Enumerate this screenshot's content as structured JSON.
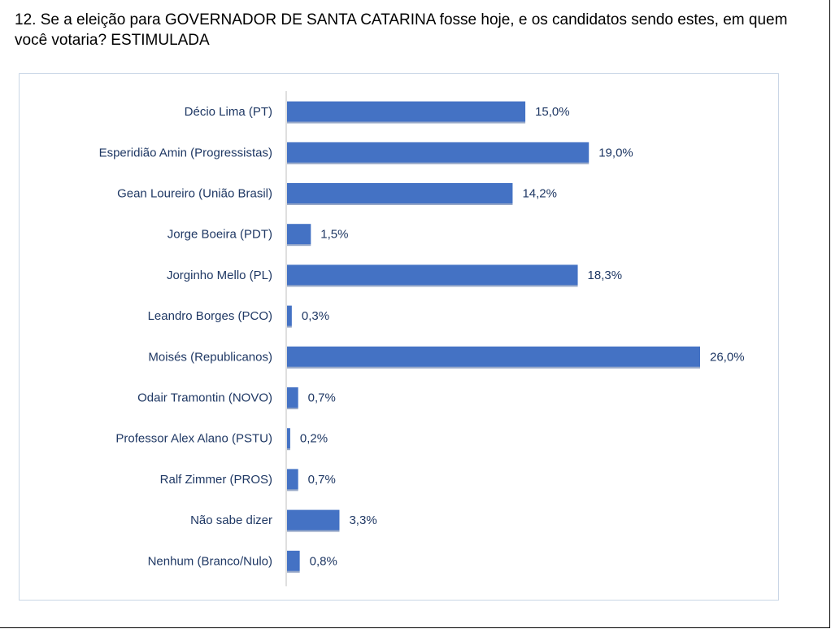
{
  "question": {
    "text": "12. Se a eleição para GOVERNADOR DE SANTA CATARINA fosse hoje, e os candidatos sendo estes, em quem você votaria? ESTIMULADA"
  },
  "colors": {
    "bar": "#4472c4",
    "axis": "#bfbfbf",
    "text": "#1f3864"
  },
  "chart_data": {
    "type": "bar",
    "orientation": "horizontal",
    "categories": [
      "Décio Lima (PT)",
      "Esperidião Amin (Progressistas)",
      "Gean Loureiro (União Brasil)",
      "Jorge Boeira (PDT)",
      "Jorginho Mello (PL)",
      "Leandro Borges (PCO)",
      "Moisés (Republicanos)",
      "Odair Tramontin (NOVO)",
      "Professor Alex Alano (PSTU)",
      "Ralf Zimmer (PROS)",
      "Não sabe dizer",
      "Nenhum (Branco/Nulo)"
    ],
    "values": [
      15.0,
      19.0,
      14.2,
      1.5,
      18.3,
      0.3,
      26.0,
      0.7,
      0.2,
      0.7,
      3.3,
      0.8
    ],
    "data_labels": [
      "15,0%",
      "19,0%",
      "14,2%",
      "1,5%",
      "18,3%",
      "0,3%",
      "26,0%",
      "0,7%",
      "0,2%",
      "0,7%",
      "3,3%",
      "0,8%"
    ],
    "title": "",
    "xlabel": "",
    "ylabel": "",
    "grid": false,
    "legend": "none"
  }
}
